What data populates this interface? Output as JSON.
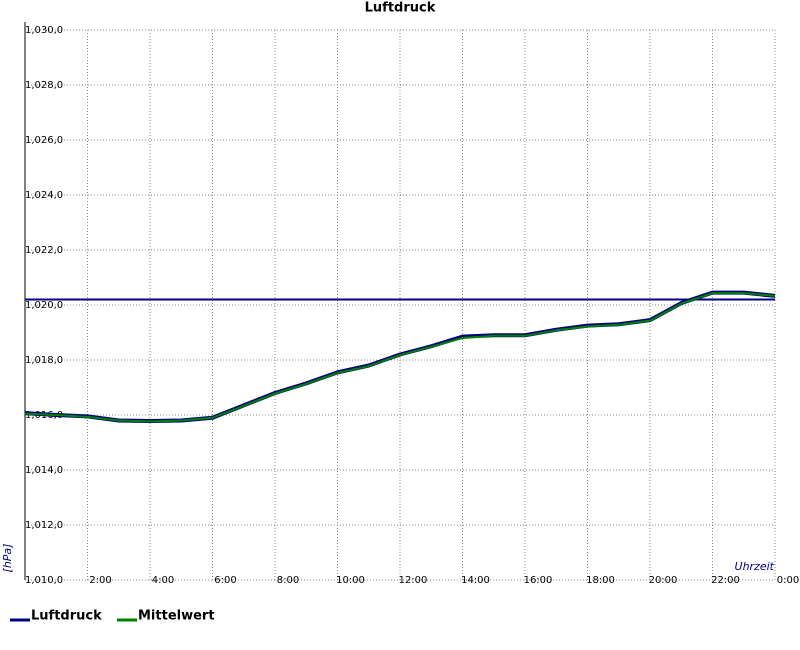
{
  "chart_data": {
    "type": "line",
    "title": "Luftdruck",
    "ylabel": "[hPa]",
    "xlabel": "Uhrzeit",
    "x": [
      0,
      1,
      2,
      3,
      4,
      5,
      6,
      7,
      8,
      9,
      10,
      11,
      12,
      13,
      14,
      15,
      16,
      17,
      18,
      19,
      20,
      21,
      22,
      23,
      24
    ],
    "series": [
      {
        "name": "Luftdruck",
        "color": "#000080",
        "values": [
          1016.07,
          1016.0,
          1015.95,
          1015.8,
          1015.78,
          1015.8,
          1015.9,
          1016.35,
          1016.8,
          1017.15,
          1017.55,
          1017.8,
          1018.2,
          1018.5,
          1018.85,
          1018.9,
          1018.9,
          1019.1,
          1019.25,
          1019.3,
          1019.45,
          1020.07,
          1020.45,
          1020.45,
          1020.33
        ]
      },
      {
        "name": "Mittelwert",
        "color": "#008000",
        "values": [
          1016.05,
          1016.0,
          1015.93,
          1015.8,
          1015.77,
          1015.8,
          1015.9,
          1016.33,
          1016.78,
          1017.13,
          1017.53,
          1017.78,
          1018.18,
          1018.48,
          1018.8,
          1018.88,
          1018.88,
          1019.08,
          1019.22,
          1019.28,
          1019.43,
          1020.05,
          1020.43,
          1020.43,
          1020.33
        ]
      }
    ],
    "hline": {
      "value": 1020.2,
      "color": "#000080"
    },
    "xlim": [
      0,
      24
    ],
    "xticks": [
      {
        "value": 2,
        "label": "2:00"
      },
      {
        "value": 4,
        "label": "4:00"
      },
      {
        "value": 6,
        "label": "6:00"
      },
      {
        "value": 8,
        "label": "8:00"
      },
      {
        "value": 10,
        "label": "10:00"
      },
      {
        "value": 12,
        "label": "12:00"
      },
      {
        "value": 14,
        "label": "14:00"
      },
      {
        "value": 16,
        "label": "16:00"
      },
      {
        "value": 18,
        "label": "18:00"
      },
      {
        "value": 20,
        "label": "20:00"
      },
      {
        "value": 22,
        "label": "22:00"
      },
      {
        "value": 24,
        "label": "0:00"
      }
    ],
    "ylim": [
      1010,
      1030
    ],
    "yticks": [
      {
        "value": 1010,
        "label": "1,010,0"
      },
      {
        "value": 1012,
        "label": "1,012,0"
      },
      {
        "value": 1014,
        "label": "1,014,0"
      },
      {
        "value": 1016,
        "label": "1,016,0"
      },
      {
        "value": 1018,
        "label": "1,018,0"
      },
      {
        "value": 1020,
        "label": "1,020,0"
      },
      {
        "value": 1022,
        "label": "1,022,0"
      },
      {
        "value": 1024,
        "label": "1,024,0"
      },
      {
        "value": 1026,
        "label": "1,026,0"
      },
      {
        "value": 1028,
        "label": "1,028,0"
      },
      {
        "value": 1030,
        "label": "1,030,0"
      }
    ],
    "grid": true
  }
}
